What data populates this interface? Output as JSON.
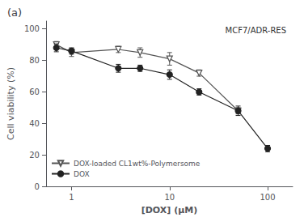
{
  "chart_data": {
    "type": "line",
    "title": "(a)",
    "annotation": "MCF7/ADR-RES",
    "xlabel": "[DOX] (μM)",
    "ylabel": "Cell viability (%)",
    "log": "x",
    "xlim": [
      0.55,
      180
    ],
    "xticks": [
      1,
      10,
      100
    ],
    "ylim": [
      0,
      105
    ],
    "yticks": [
      0,
      20,
      40,
      60,
      80,
      100
    ],
    "grid": false,
    "legend": "lower left",
    "series": [
      {
        "name": "DOX-loaded CL1wt%-Polymersome",
        "color": "#555555",
        "marker": "triangle_down_open",
        "line_style": "solid",
        "x": [
          0.7,
          1.0,
          3.0,
          5.0,
          10.0,
          20.0,
          50.0
        ],
        "values": [
          90,
          85,
          87,
          85,
          81,
          72,
          48
        ],
        "yerr": [
          2,
          2.5,
          2,
          3,
          4,
          2,
          2
        ]
      },
      {
        "name": "DOX",
        "color": "#222222",
        "marker": "circle",
        "line_style": "solid",
        "x": [
          0.7,
          1.0,
          3.0,
          5.0,
          10.0,
          20.0,
          50.0,
          100.0
        ],
        "values": [
          88,
          86,
          75,
          75,
          71,
          60,
          48,
          24
        ],
        "yerr": [
          2.5,
          2,
          2.5,
          2,
          3,
          2,
          3,
          2
        ]
      }
    ]
  }
}
